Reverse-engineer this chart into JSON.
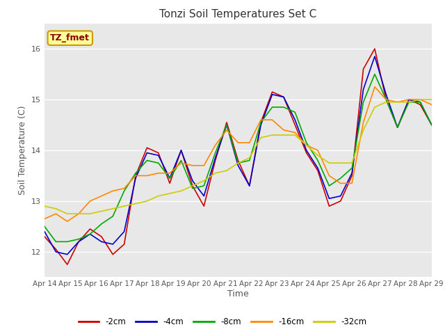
{
  "title": "Tonzi Soil Temperatures Set C",
  "xlabel": "Time",
  "ylabel": "Soil Temperature (C)",
  "ylim": [
    11.5,
    16.5
  ],
  "fig_bg_color": "#ffffff",
  "plot_bg_color": "#e8e8e8",
  "annotation_text": "TZ_fmet",
  "annotation_bg": "#ffff99",
  "annotation_border": "#cc9900",
  "legend_entries": [
    "-2cm",
    "-4cm",
    "-8cm",
    "-16cm",
    "-32cm"
  ],
  "line_colors": [
    "#cc0000",
    "#0000cc",
    "#00aa00",
    "#ff8800",
    "#cccc00"
  ],
  "line_widths": [
    1.2,
    1.2,
    1.2,
    1.2,
    1.2
  ],
  "xtick_labels": [
    "Apr 14",
    "Apr 15",
    "Apr 16",
    "Apr 17",
    "Apr 18",
    "Apr 19",
    "Apr 20",
    "Apr 21",
    "Apr 22",
    "Apr 23",
    "Apr 24",
    "Apr 25",
    "Apr 26",
    "Apr 27",
    "Apr 28",
    "Apr 29"
  ],
  "series": {
    "m2cm": [
      12.3,
      12.05,
      11.75,
      12.2,
      12.45,
      12.3,
      11.95,
      12.15,
      13.5,
      14.05,
      13.95,
      13.35,
      14.0,
      13.3,
      12.9,
      13.8,
      14.55,
      13.8,
      13.3,
      14.55,
      15.15,
      15.05,
      14.5,
      13.95,
      13.6,
      12.9,
      13.0,
      13.5,
      15.6,
      16.0,
      15.0,
      14.45,
      15.0,
      14.9,
      14.5
    ],
    "m4cm": [
      12.4,
      12.0,
      11.95,
      12.2,
      12.35,
      12.2,
      12.15,
      12.4,
      13.45,
      13.95,
      13.9,
      13.45,
      14.0,
      13.4,
      13.1,
      13.85,
      14.5,
      13.7,
      13.3,
      14.5,
      15.1,
      15.05,
      14.6,
      14.0,
      13.65,
      13.05,
      13.1,
      13.55,
      15.2,
      15.85,
      15.1,
      14.45,
      15.0,
      14.95,
      14.5
    ],
    "m8cm": [
      12.5,
      12.2,
      12.2,
      12.25,
      12.35,
      12.55,
      12.7,
      13.2,
      13.55,
      13.8,
      13.75,
      13.45,
      13.8,
      13.25,
      13.3,
      13.95,
      14.5,
      13.75,
      13.8,
      14.55,
      14.85,
      14.85,
      14.75,
      14.15,
      13.8,
      13.3,
      13.45,
      13.65,
      14.95,
      15.5,
      15.0,
      14.45,
      14.95,
      14.95,
      14.5
    ],
    "m16cm": [
      12.65,
      12.75,
      12.6,
      12.75,
      13.0,
      13.1,
      13.2,
      13.25,
      13.5,
      13.5,
      13.55,
      13.55,
      13.75,
      13.7,
      13.7,
      14.1,
      14.4,
      14.15,
      14.15,
      14.6,
      14.6,
      14.4,
      14.35,
      14.1,
      14.0,
      13.5,
      13.35,
      13.35,
      14.55,
      15.25,
      15.0,
      14.95,
      15.0,
      15.0,
      14.9
    ],
    "m32cm": [
      12.9,
      12.85,
      12.75,
      12.75,
      12.75,
      12.8,
      12.85,
      12.9,
      12.95,
      13.0,
      13.1,
      13.15,
      13.2,
      13.3,
      13.4,
      13.55,
      13.6,
      13.75,
      13.85,
      14.25,
      14.3,
      14.3,
      14.3,
      14.1,
      13.9,
      13.75,
      13.75,
      13.75,
      14.4,
      14.85,
      14.95,
      14.95,
      14.95,
      15.0,
      15.0
    ]
  }
}
